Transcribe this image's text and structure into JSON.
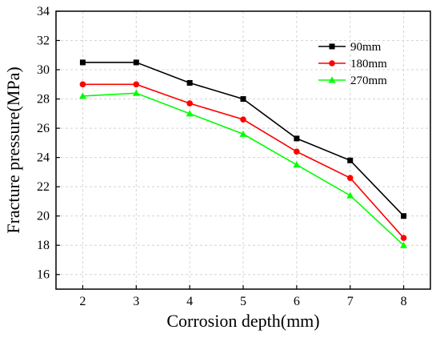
{
  "chart_data": {
    "type": "line",
    "xlabel": "Corrosion depth(mm)",
    "ylabel": "Fracture pressure(MPa)",
    "x": [
      2,
      3,
      4,
      5,
      6,
      7,
      8
    ],
    "xlim": [
      1.5,
      8.5
    ],
    "ylim": [
      15,
      34
    ],
    "x_ticks": [
      2,
      3,
      4,
      5,
      6,
      7,
      8
    ],
    "y_ticks": [
      16,
      18,
      20,
      22,
      24,
      26,
      28,
      30,
      32,
      34
    ],
    "grid": true,
    "legend_position": "top-right",
    "series": [
      {
        "name": "90mm",
        "color": "#000000",
        "marker": "square",
        "values": [
          30.5,
          30.5,
          29.1,
          28.0,
          25.3,
          23.8,
          20.0
        ]
      },
      {
        "name": "180mm",
        "color": "#ff0000",
        "marker": "circle",
        "values": [
          29.0,
          29.0,
          27.7,
          26.6,
          24.4,
          22.6,
          18.5
        ]
      },
      {
        "name": "270mm",
        "color": "#00ff00",
        "marker": "triangle",
        "values": [
          28.2,
          28.4,
          27.0,
          25.6,
          23.5,
          21.4,
          18.0
        ]
      }
    ]
  }
}
